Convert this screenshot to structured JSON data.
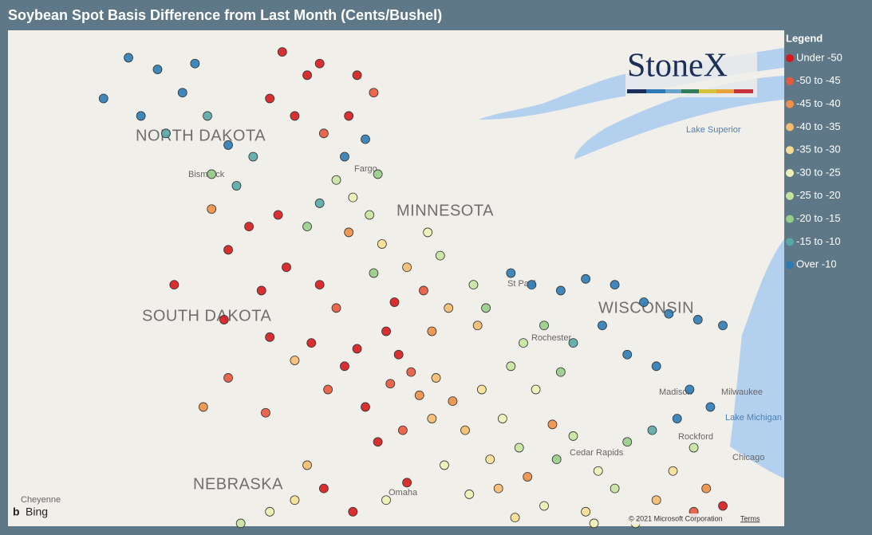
{
  "title": "Soybean Spot Basis Difference from Last Month (Cents/Bushel)",
  "legend": {
    "title": "Legend",
    "items": [
      {
        "label": "Under -50",
        "color": "#d7191c"
      },
      {
        "label": "-50 to -45",
        "color": "#e9573c"
      },
      {
        "label": "-45 to -40",
        "color": "#f08f45"
      },
      {
        "label": "-40 to -35",
        "color": "#f6bb6e"
      },
      {
        "label": "-35 to -30",
        "color": "#f7df92"
      },
      {
        "label": "-30 to -25",
        "color": "#eef1b6"
      },
      {
        "label": "-25 to -20",
        "color": "#c6e49e"
      },
      {
        "label": "-20 to -15",
        "color": "#97cd89"
      },
      {
        "label": "-15 to -10",
        "color": "#58a9a6"
      },
      {
        "label": "Over -10",
        "color": "#2c7bb6"
      }
    ]
  },
  "map": {
    "labels": {
      "north_dakota": "NORTH DAKOTA",
      "minnesota": "MINNESOTA",
      "south_dakota": "SOUTH DAKOTA",
      "wisconsin": "WISCONSIN",
      "nebraska": "NEBRASKA",
      "bismarck": "Bismarck",
      "fargo": "Fargo",
      "st_paul": "St Paul",
      "rochester": "Rochester",
      "madison": "Madison",
      "milwaukee": "Milwaukee",
      "rockford": "Rockford",
      "chicago": "Chicago",
      "cedar_rapids": "Cedar Rapids",
      "omaha": "Omaha",
      "cheyenne": "Cheyenne",
      "lake_superior": "Lake Superior",
      "lake_michigan": "Lake Michigan"
    },
    "logo": "StoneX",
    "provider": "Bing",
    "copyright": "© 2021 Microsoft Corporation",
    "terms": "Terms",
    "points": [
      [
        -102.2,
        48.9,
        9
      ],
      [
        -101.5,
        48.7,
        9
      ],
      [
        -100.6,
        48.8,
        9
      ],
      [
        -102.8,
        48.2,
        9
      ],
      [
        -101.9,
        47.9,
        9
      ],
      [
        -100.9,
        48.3,
        9
      ],
      [
        -101.3,
        47.6,
        8
      ],
      [
        -100.3,
        47.9,
        8
      ],
      [
        -99.8,
        47.4,
        9
      ],
      [
        -99.2,
        47.2,
        8
      ],
      [
        -100.2,
        46.9,
        7
      ],
      [
        -99.6,
        46.7,
        8
      ],
      [
        -98.5,
        49.0,
        0
      ],
      [
        -97.9,
        48.6,
        0
      ],
      [
        -98.8,
        48.2,
        0
      ],
      [
        -97.6,
        48.8,
        0
      ],
      [
        -98.2,
        47.9,
        0
      ],
      [
        -97.5,
        47.6,
        1
      ],
      [
        -96.9,
        47.9,
        0
      ],
      [
        -96.7,
        48.6,
        0
      ],
      [
        -96.3,
        48.3,
        1
      ],
      [
        -97.0,
        47.2,
        9
      ],
      [
        -96.5,
        47.5,
        9
      ],
      [
        -96.2,
        46.9,
        7
      ],
      [
        -97.2,
        46.8,
        6
      ],
      [
        -96.8,
        46.5,
        5
      ],
      [
        -97.6,
        46.4,
        8
      ],
      [
        -96.4,
        46.2,
        6
      ],
      [
        -97.9,
        46.0,
        7
      ],
      [
        -96.9,
        45.9,
        2
      ],
      [
        -96.1,
        45.7,
        4
      ],
      [
        -100.2,
        46.3,
        2
      ],
      [
        -99.3,
        46.0,
        0
      ],
      [
        -98.6,
        46.2,
        0
      ],
      [
        -99.8,
        45.6,
        0
      ],
      [
        -101.1,
        45.0,
        0
      ],
      [
        -99.9,
        44.4,
        0
      ],
      [
        -99.0,
        44.9,
        0
      ],
      [
        -98.4,
        45.3,
        0
      ],
      [
        -97.6,
        45.0,
        0
      ],
      [
        -98.8,
        44.1,
        0
      ],
      [
        -97.8,
        44.0,
        0
      ],
      [
        -97.2,
        44.6,
        1
      ],
      [
        -98.2,
        43.7,
        3
      ],
      [
        -97.0,
        43.6,
        0
      ],
      [
        -96.7,
        43.9,
        0
      ],
      [
        -97.4,
        43.2,
        1
      ],
      [
        -96.5,
        42.9,
        0
      ],
      [
        -99.8,
        43.4,
        1
      ],
      [
        -100.4,
        42.9,
        2
      ],
      [
        -98.9,
        42.8,
        1
      ],
      [
        -96.0,
        44.2,
        0
      ],
      [
        -95.7,
        43.8,
        0
      ],
      [
        -95.4,
        43.5,
        1
      ],
      [
        -95.9,
        43.3,
        1
      ],
      [
        -95.2,
        43.1,
        2
      ],
      [
        -94.8,
        43.4,
        3
      ],
      [
        -94.4,
        43.0,
        2
      ],
      [
        -94.9,
        42.7,
        3
      ],
      [
        -95.6,
        42.5,
        1
      ],
      [
        -96.2,
        42.3,
        0
      ],
      [
        -94.1,
        42.5,
        3
      ],
      [
        -93.7,
        43.2,
        4
      ],
      [
        -93.2,
        42.7,
        5
      ],
      [
        -92.8,
        42.2,
        6
      ],
      [
        -93.5,
        42.0,
        4
      ],
      [
        -94.6,
        41.9,
        5
      ],
      [
        -95.5,
        41.6,
        0
      ],
      [
        -96.0,
        41.3,
        5
      ],
      [
        -96.8,
        41.1,
        0
      ],
      [
        -97.5,
        41.5,
        0
      ],
      [
        -98.2,
        41.3,
        4
      ],
      [
        -97.9,
        41.9,
        3
      ],
      [
        -98.8,
        41.1,
        5
      ],
      [
        -99.5,
        40.9,
        6
      ],
      [
        -94.0,
        41.4,
        5
      ],
      [
        -93.3,
        41.5,
        3
      ],
      [
        -92.6,
        41.7,
        2
      ],
      [
        -91.9,
        42.0,
        7
      ],
      [
        -91.5,
        42.4,
        6
      ],
      [
        -92.2,
        41.2,
        5
      ],
      [
        -91.2,
        41.1,
        4
      ],
      [
        -90.5,
        41.5,
        6
      ],
      [
        -90.9,
        41.8,
        5
      ],
      [
        -92.0,
        42.6,
        2
      ],
      [
        -92.4,
        43.2,
        5
      ],
      [
        -93.0,
        43.6,
        6
      ],
      [
        -92.7,
        44.0,
        6
      ],
      [
        -93.8,
        44.3,
        3
      ],
      [
        -94.5,
        44.6,
        3
      ],
      [
        -95.1,
        44.9,
        1
      ],
      [
        -95.5,
        45.3,
        3
      ],
      [
        -94.7,
        45.5,
        6
      ],
      [
        -93.9,
        45.0,
        6
      ],
      [
        -94.9,
        44.2,
        2
      ],
      [
        -95.8,
        44.7,
        0
      ],
      [
        -96.3,
        45.2,
        7
      ],
      [
        -95.0,
        45.9,
        5
      ],
      [
        -93.0,
        45.2,
        9
      ],
      [
        -92.5,
        45.0,
        9
      ],
      [
        -91.8,
        44.9,
        9
      ],
      [
        -91.2,
        45.1,
        9
      ],
      [
        -90.5,
        45.0,
        9
      ],
      [
        -89.8,
        44.7,
        9
      ],
      [
        -89.2,
        44.5,
        9
      ],
      [
        -88.5,
        44.4,
        9
      ],
      [
        -87.9,
        44.3,
        9
      ],
      [
        -90.8,
        44.3,
        9
      ],
      [
        -91.5,
        44.0,
        8
      ],
      [
        -90.2,
        43.8,
        9
      ],
      [
        -89.5,
        43.6,
        9
      ],
      [
        -88.7,
        43.2,
        9
      ],
      [
        -88.2,
        42.9,
        9
      ],
      [
        -89.0,
        42.7,
        9
      ],
      [
        -89.6,
        42.5,
        8
      ],
      [
        -90.2,
        42.3,
        7
      ],
      [
        -88.6,
        42.2,
        6
      ],
      [
        -89.1,
        41.8,
        4
      ],
      [
        -88.3,
        41.5,
        2
      ],
      [
        -87.9,
        41.2,
        0
      ],
      [
        -88.6,
        41.1,
        1
      ],
      [
        -89.5,
        41.3,
        3
      ],
      [
        -90.0,
        40.9,
        5
      ],
      [
        -91.0,
        40.9,
        5
      ],
      [
        -93.6,
        44.6,
        7
      ],
      [
        -92.2,
        44.3,
        7
      ],
      [
        -91.8,
        43.5,
        7
      ],
      [
        -92.9,
        41.0,
        4
      ]
    ]
  }
}
